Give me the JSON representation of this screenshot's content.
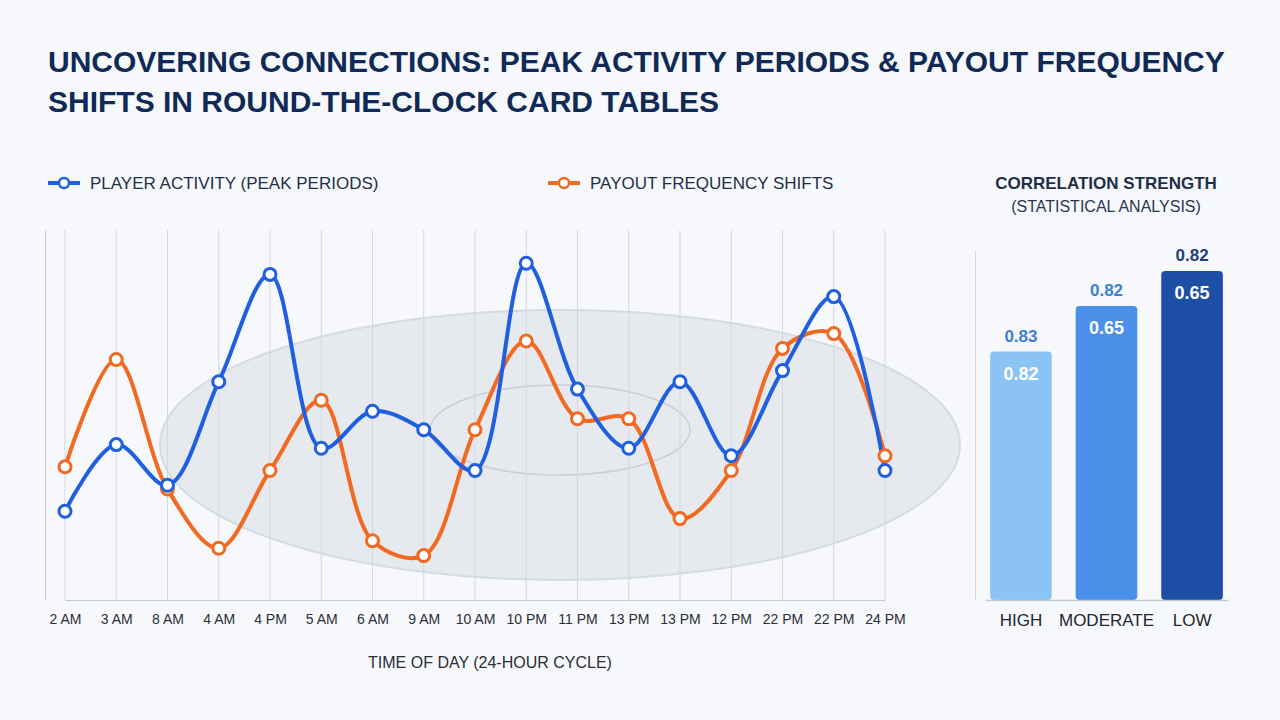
{
  "chart_data": [
    {
      "type": "line",
      "title": "UNCOVERING CONNECTIONS: PEAK ACTIVITY PERIODS & PAYOUT FREQUENCY SHIFTS IN ROUND-THE-CLOCK CARD TABLES",
      "x_label": "TIME OF DAY (24-HOUR CYCLE)",
      "categories": [
        "2 AM",
        "3 AM",
        "8 AM",
        "4 AM",
        "4 PM",
        "5 AM",
        "6 AM",
        "9 AM",
        "10 AM",
        "10 PM",
        "11 PM",
        "13 PM",
        "13 PM",
        "12 PM",
        "22 PM",
        "22 PM",
        "24 PM"
      ],
      "series": [
        {
          "name": "PLAYER ACTIVITY (PEAK PERIODS)",
          "color": "#1f5fe0",
          "marker": "circle",
          "values": [
            24,
            42,
            31,
            59,
            88,
            41,
            51,
            46,
            35,
            91,
            57,
            41,
            59,
            39,
            62,
            82,
            35
          ]
        },
        {
          "name": "PAYOUT FREQUENCY SHIFTS",
          "color": "#f26a21",
          "marker": "circle",
          "values": [
            36,
            65,
            30,
            14,
            35,
            54,
            16,
            12,
            46,
            70,
            49,
            49,
            22,
            35,
            68,
            72,
            39
          ]
        }
      ],
      "ylim": [
        0,
        100
      ],
      "yticks": [],
      "tick_labels": "x",
      "grid": true,
      "legend": "top"
    },
    {
      "type": "bar",
      "title": "CORRELATION STRENGTH",
      "subtitle": "(STATISTICAL ANALYSIS)",
      "categories": [
        "HIGH",
        "MODERATE",
        "LOW"
      ],
      "values": [
        0.71,
        0.84,
        0.94
      ],
      "colors": [
        "#8cc3f5",
        "#4a90e8",
        "#1e4fa6"
      ],
      "upper_labels": [
        0.83,
        0.82,
        0.82
      ],
      "inner_labels": [
        0.82,
        0.65,
        0.65
      ],
      "ylim": [
        0,
        1
      ],
      "yticks": [],
      "tick_labels": "x"
    }
  ]
}
